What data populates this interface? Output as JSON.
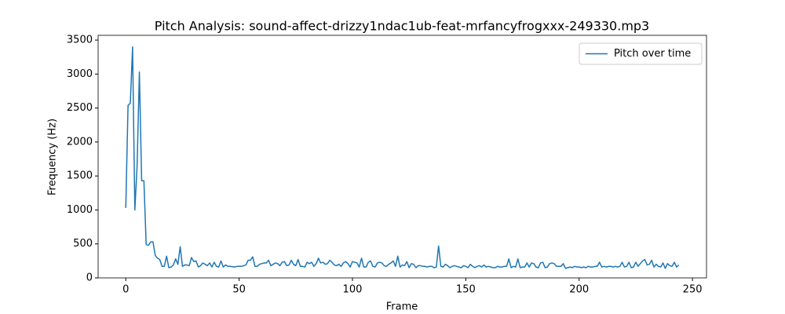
{
  "chart_data": {
    "type": "line",
    "title": "Pitch Analysis: sound-affect-drizzy1ndac1ub-feat-mrfancyfrogxxx-249330.mp3",
    "x_label": "Frame",
    "y_label": "Frequency (Hz)",
    "xlim": [
      -12.2,
      256.2
    ],
    "xticks": [
      0,
      50,
      100,
      150,
      200,
      250
    ],
    "ylim": [
      0,
      3570
    ],
    "yticks": [
      0,
      500,
      1000,
      1500,
      2000,
      2500,
      3000,
      3500
    ],
    "legend": "upper right",
    "series": [
      {
        "name": "Pitch over time",
        "color": "#1f77b4",
        "values": [
          1030,
          2540,
          2570,
          3400,
          1000,
          1650,
          3030,
          1430,
          1430,
          490,
          480,
          530,
          530,
          330,
          290,
          270,
          170,
          170,
          320,
          150,
          160,
          190,
          280,
          200,
          460,
          170,
          190,
          190,
          180,
          300,
          240,
          250,
          160,
          180,
          220,
          200,
          180,
          220,
          160,
          230,
          170,
          160,
          250,
          160,
          190,
          170,
          170,
          165,
          160,
          170,
          170,
          170,
          180,
          190,
          260,
          260,
          310,
          170,
          170,
          200,
          210,
          220,
          220,
          260,
          180,
          200,
          220,
          210,
          180,
          230,
          240,
          180,
          190,
          260,
          200,
          180,
          270,
          170,
          170,
          160,
          230,
          210,
          230,
          170,
          210,
          290,
          220,
          230,
          200,
          210,
          260,
          230,
          190,
          180,
          200,
          170,
          220,
          240,
          210,
          160,
          240,
          230,
          220,
          160,
          290,
          160,
          160,
          230,
          250,
          170,
          160,
          220,
          230,
          220,
          180,
          170,
          200,
          220,
          250,
          170,
          320,
          160,
          190,
          180,
          240,
          150,
          210,
          200,
          150,
          180,
          180,
          170,
          170,
          160,
          170,
          170,
          150,
          160,
          470,
          170,
          160,
          200,
          180,
          150,
          170,
          180,
          170,
          160,
          150,
          180,
          170,
          150,
          200,
          170,
          150,
          170,
          180,
          160,
          190,
          160,
          170,
          160,
          150,
          150,
          170,
          160,
          160,
          170,
          170,
          280,
          150,
          170,
          160,
          280,
          150,
          160,
          160,
          220,
          160,
          220,
          210,
          160,
          150,
          220,
          230,
          150,
          160,
          210,
          220,
          210,
          170,
          170,
          170,
          210,
          140,
          150,
          160,
          150,
          170,
          160,
          160,
          150,
          160,
          150,
          170,
          160,
          160,
          170,
          170,
          230,
          160,
          170,
          160,
          170,
          170,
          160,
          170,
          160,
          170,
          230,
          160,
          170,
          230,
          150,
          160,
          230,
          170,
          210,
          250,
          270,
          190,
          200,
          260,
          160,
          200,
          170,
          160,
          220,
          140,
          210,
          180,
          170,
          230,
          160,
          190
        ]
      }
    ]
  }
}
